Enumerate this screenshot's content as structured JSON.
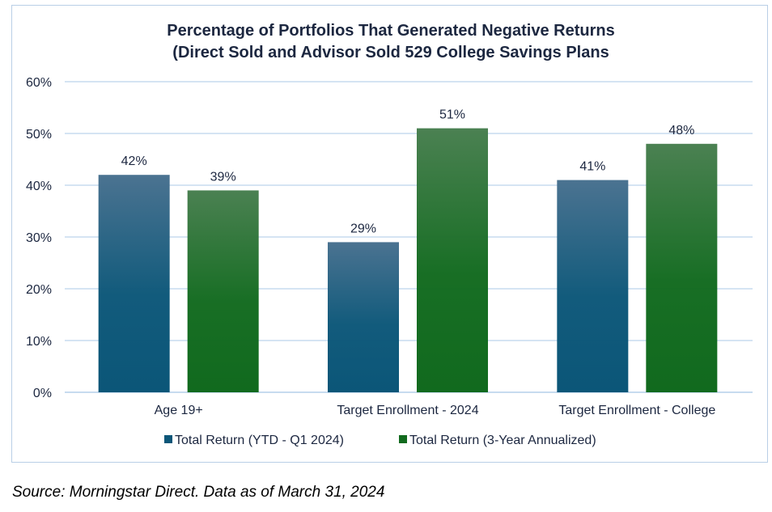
{
  "chart_data": {
    "type": "bar",
    "title": [
      "Percentage of Portfolios That Generated Negative Returns",
      "(Direct Sold and Advisor Sold 529 College Savings Plans"
    ],
    "categories": [
      "Age 19+",
      "Target Enrollment - 2024",
      "Target Enrollment - College"
    ],
    "series": [
      {
        "name": "Total Return (YTD - Q1 2024)",
        "values": [
          42,
          29,
          41
        ],
        "labels": [
          "42%",
          "29%",
          "41%"
        ],
        "color_top": "#4b7391",
        "color_bottom": "#0b5678"
      },
      {
        "name": "Total Return (3-Year Annualized)",
        "values": [
          39,
          51,
          48
        ],
        "labels": [
          "39%",
          "51%",
          "48%"
        ],
        "color_top": "#4b8152",
        "color_bottom": "#116a1e"
      }
    ],
    "ylim": [
      0,
      60
    ],
    "yticks": [
      "0%",
      "10%",
      "20%",
      "30%",
      "40%",
      "50%",
      "60%"
    ],
    "grid": true,
    "gridline_color": "#c7dbef",
    "legend_position": "bottom"
  },
  "source": "Source: Morningstar Direct.  Data as of March 31, 2024"
}
